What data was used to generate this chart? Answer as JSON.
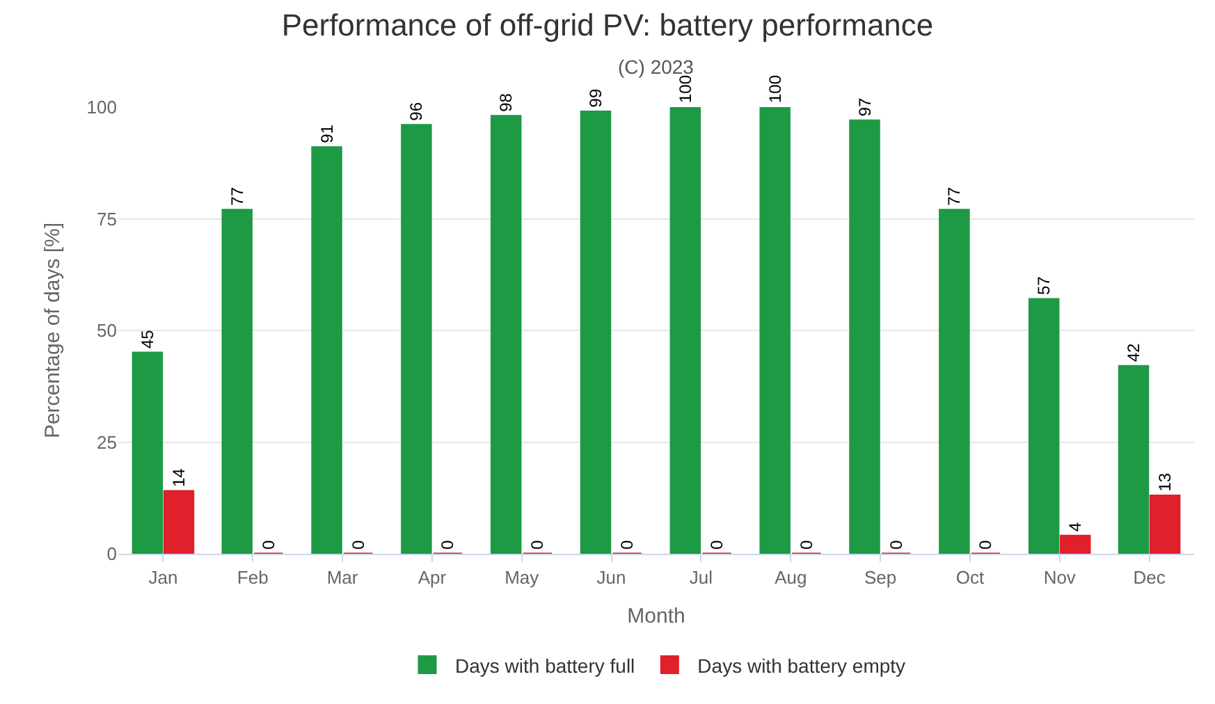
{
  "chart_data": {
    "type": "bar",
    "title": "Performance of off-grid PV: battery performance",
    "subtitle": "(C) 2023",
    "xlabel": "Month",
    "ylabel": "Percentage of days [%]",
    "categories": [
      "Jan",
      "Feb",
      "Mar",
      "Apr",
      "May",
      "Jun",
      "Jul",
      "Aug",
      "Sep",
      "Oct",
      "Nov",
      "Dec"
    ],
    "series": [
      {
        "name": "Days with battery full",
        "color": "#1e9a44",
        "values": [
          45,
          77,
          91,
          96,
          98,
          99,
          100,
          100,
          97,
          77,
          57,
          42
        ]
      },
      {
        "name": "Days with battery empty",
        "color": "#e0202a",
        "values": [
          14,
          0,
          0,
          0,
          0,
          0,
          0,
          0,
          0,
          0,
          4,
          13
        ]
      }
    ],
    "ylim": [
      0,
      100
    ],
    "yticks": [
      0,
      25,
      50,
      75,
      100
    ],
    "grid": "y",
    "legend": "bottom",
    "data_labels": true
  }
}
